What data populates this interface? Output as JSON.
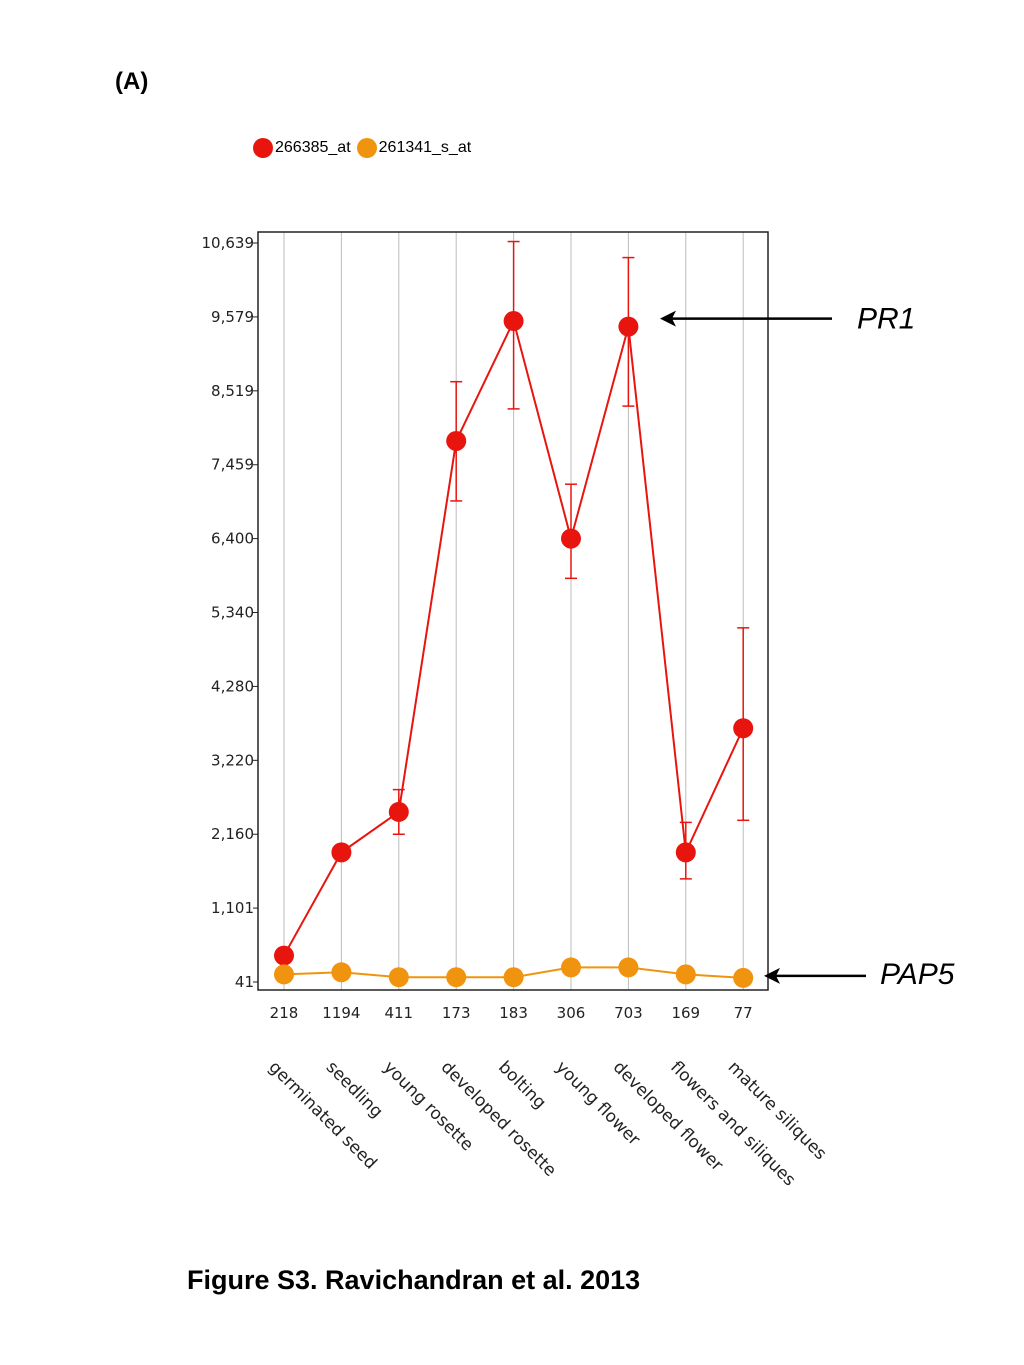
{
  "panel_label": "(A)",
  "caption": "Figure S3. Ravichandran et al. 2013",
  "colors": {
    "series1": "#e8150f",
    "series2": "#f0930f",
    "grid": "#bdbdbd",
    "arrow": "#000000"
  },
  "chart_data": {
    "type": "line",
    "title": "",
    "xlabel": "",
    "ylabel": "",
    "ylim": [
      41,
      10639
    ],
    "y_ticks": [
      41,
      1101,
      2160,
      3220,
      4280,
      5340,
      6400,
      7459,
      8519,
      9579,
      10639
    ],
    "y_tick_labels": [
      "41",
      "1,101",
      "2,160",
      "3,220",
      "4,280",
      "5,340",
      "6,400",
      "7,459",
      "8,519",
      "9,579",
      "10,639"
    ],
    "sample_counts": [
      "218",
      "1194",
      "411",
      "173",
      "183",
      "306",
      "703",
      "169",
      "77"
    ],
    "categories": [
      "germinated seed",
      "seedling",
      "young rosette",
      "developed rosette",
      "bolting",
      "young flower",
      "developed flower",
      "flowers and siliques",
      "mature siliques"
    ],
    "legend_position": "top-left",
    "grid": true,
    "series": [
      {
        "name": "266385_at",
        "color": "#e8150f",
        "values": [
          420,
          1900,
          2480,
          7800,
          9520,
          6400,
          9440,
          1900,
          3680
        ],
        "error_low": [
          420,
          1900,
          2160,
          6940,
          8260,
          5830,
          8300,
          1520,
          2360
        ],
        "error_high": [
          420,
          1900,
          2800,
          8650,
          10660,
          7180,
          10430,
          2330,
          5120
        ]
      },
      {
        "name": "261341_s_at",
        "color": "#f0930f",
        "values": [
          150,
          180,
          110,
          110,
          110,
          250,
          250,
          150,
          100
        ]
      }
    ],
    "annotations": [
      {
        "text": "PR1",
        "points_to": "266385_at"
      },
      {
        "text": "PAP5",
        "points_to": "261341_s_at"
      }
    ]
  }
}
